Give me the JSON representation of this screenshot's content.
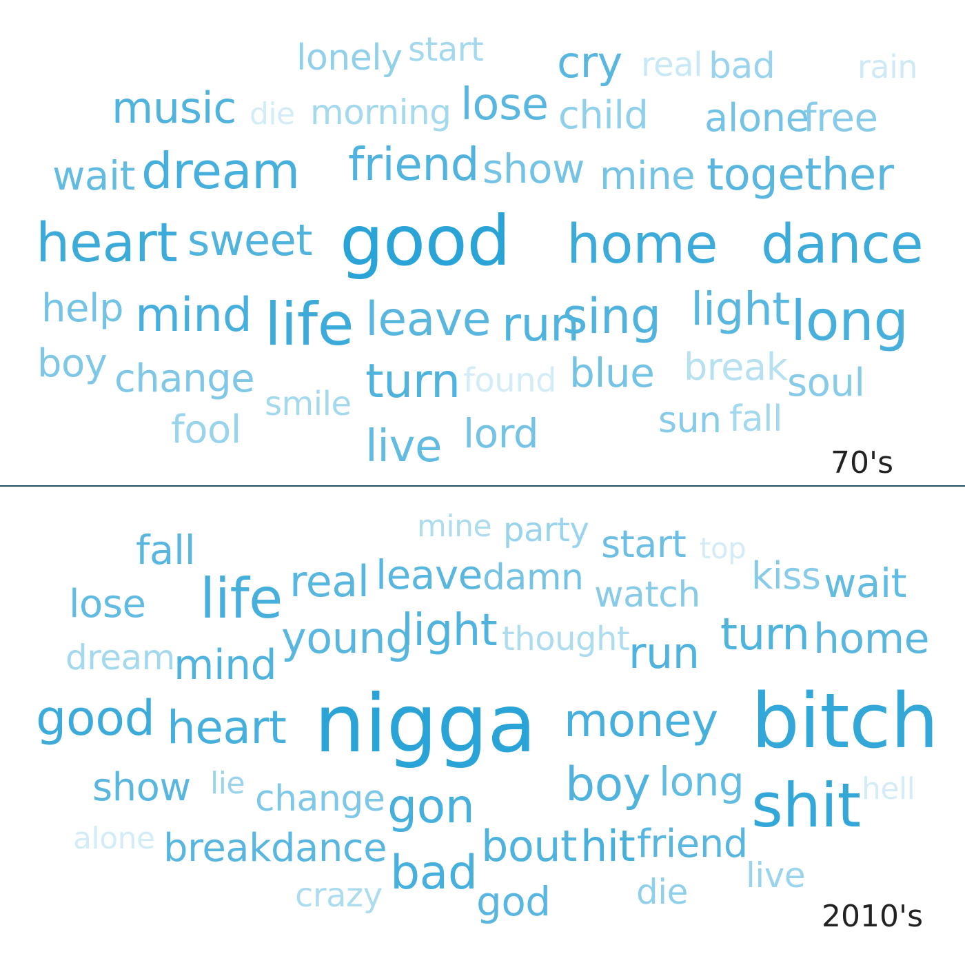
{
  "panels": [
    {
      "label": "70's",
      "words": [
        {
          "text": "lonely",
          "weight": 0.45
        },
        {
          "text": "start",
          "weight": 0.35
        },
        {
          "text": "cry",
          "weight": 0.75
        },
        {
          "text": "real",
          "weight": 0.15
        },
        {
          "text": "bad",
          "weight": 0.4
        },
        {
          "text": "rain",
          "weight": 0.12
        },
        {
          "text": "music",
          "weight": 0.8
        },
        {
          "text": "die",
          "weight": 0.1
        },
        {
          "text": "morning",
          "weight": 0.35
        },
        {
          "text": "lose",
          "weight": 0.75
        },
        {
          "text": "child",
          "weight": 0.45
        },
        {
          "text": "alone",
          "weight": 0.6
        },
        {
          "text": "free",
          "weight": 0.5
        },
        {
          "text": "wait",
          "weight": 0.7
        },
        {
          "text": "dream",
          "weight": 0.85
        },
        {
          "text": "friend",
          "weight": 0.8
        },
        {
          "text": "show",
          "weight": 0.6
        },
        {
          "text": "mine",
          "weight": 0.6
        },
        {
          "text": "together",
          "weight": 0.75
        },
        {
          "text": "heart",
          "weight": 0.9
        },
        {
          "text": "sweet",
          "weight": 0.8
        },
        {
          "text": "good",
          "weight": 1.0
        },
        {
          "text": "home",
          "weight": 0.9
        },
        {
          "text": "dance",
          "weight": 0.9
        },
        {
          "text": "help",
          "weight": 0.6
        },
        {
          "text": "mind",
          "weight": 0.85
        },
        {
          "text": "life",
          "weight": 0.9
        },
        {
          "text": "leave",
          "weight": 0.75
        },
        {
          "text": "run",
          "weight": 0.8
        },
        {
          "text": "sing",
          "weight": 0.8
        },
        {
          "text": "light",
          "weight": 0.75
        },
        {
          "text": "long",
          "weight": 0.85
        },
        {
          "text": "boy",
          "weight": 0.55
        },
        {
          "text": "change",
          "weight": 0.55
        },
        {
          "text": "turn",
          "weight": 0.8
        },
        {
          "text": "found",
          "weight": 0.1
        },
        {
          "text": "blue",
          "weight": 0.6
        },
        {
          "text": "break",
          "weight": 0.25
        },
        {
          "text": "soul",
          "weight": 0.5
        },
        {
          "text": "smile",
          "weight": 0.35
        },
        {
          "text": "fool",
          "weight": 0.4
        },
        {
          "text": "live",
          "weight": 0.7
        },
        {
          "text": "lord",
          "weight": 0.6
        },
        {
          "text": "sun",
          "weight": 0.5
        },
        {
          "text": "fall",
          "weight": 0.35
        }
      ]
    },
    {
      "label": "2010's",
      "words": [
        {
          "text": "mine",
          "weight": 0.3
        },
        {
          "text": "party",
          "weight": 0.4
        },
        {
          "text": "fall",
          "weight": 0.75
        },
        {
          "text": "start",
          "weight": 0.65
        },
        {
          "text": "top",
          "weight": 0.1
        },
        {
          "text": "life",
          "weight": 0.85
        },
        {
          "text": "real",
          "weight": 0.75
        },
        {
          "text": "leave",
          "weight": 0.75
        },
        {
          "text": "damn",
          "weight": 0.6
        },
        {
          "text": "kiss",
          "weight": 0.5
        },
        {
          "text": "wait",
          "weight": 0.7
        },
        {
          "text": "lose",
          "weight": 0.7
        },
        {
          "text": "watch",
          "weight": 0.5
        },
        {
          "text": "young",
          "weight": 0.75
        },
        {
          "text": "light",
          "weight": 0.8
        },
        {
          "text": "thought",
          "weight": 0.3
        },
        {
          "text": "run",
          "weight": 0.8
        },
        {
          "text": "turn",
          "weight": 0.8
        },
        {
          "text": "home",
          "weight": 0.75
        },
        {
          "text": "dream",
          "weight": 0.35
        },
        {
          "text": "mind",
          "weight": 0.8
        },
        {
          "text": "good",
          "weight": 0.9
        },
        {
          "text": "heart",
          "weight": 0.85
        },
        {
          "text": "nigga",
          "weight": 1.0
        },
        {
          "text": "money",
          "weight": 0.85
        },
        {
          "text": "bitch",
          "weight": 0.95
        },
        {
          "text": "show",
          "weight": 0.75
        },
        {
          "text": "lie",
          "weight": 0.4
        },
        {
          "text": "change",
          "weight": 0.55
        },
        {
          "text": "gon",
          "weight": 0.85
        },
        {
          "text": "boy",
          "weight": 0.8
        },
        {
          "text": "long",
          "weight": 0.7
        },
        {
          "text": "shit",
          "weight": 0.95
        },
        {
          "text": "hell",
          "weight": 0.1
        },
        {
          "text": "alone",
          "weight": 0.1
        },
        {
          "text": "break",
          "weight": 0.75
        },
        {
          "text": "dance",
          "weight": 0.75
        },
        {
          "text": "bout",
          "weight": 0.8
        },
        {
          "text": "hit",
          "weight": 0.85
        },
        {
          "text": "friend",
          "weight": 0.75
        },
        {
          "text": "bad",
          "weight": 0.85
        },
        {
          "text": "crazy",
          "weight": 0.3
        },
        {
          "text": "god",
          "weight": 0.75
        },
        {
          "text": "die",
          "weight": 0.45
        },
        {
          "text": "live",
          "weight": 0.4
        }
      ]
    }
  ],
  "colors": {
    "word": "#2aa3d6",
    "label": "#222222",
    "divider": "#1f4e63",
    "background": "#ffffff"
  }
}
